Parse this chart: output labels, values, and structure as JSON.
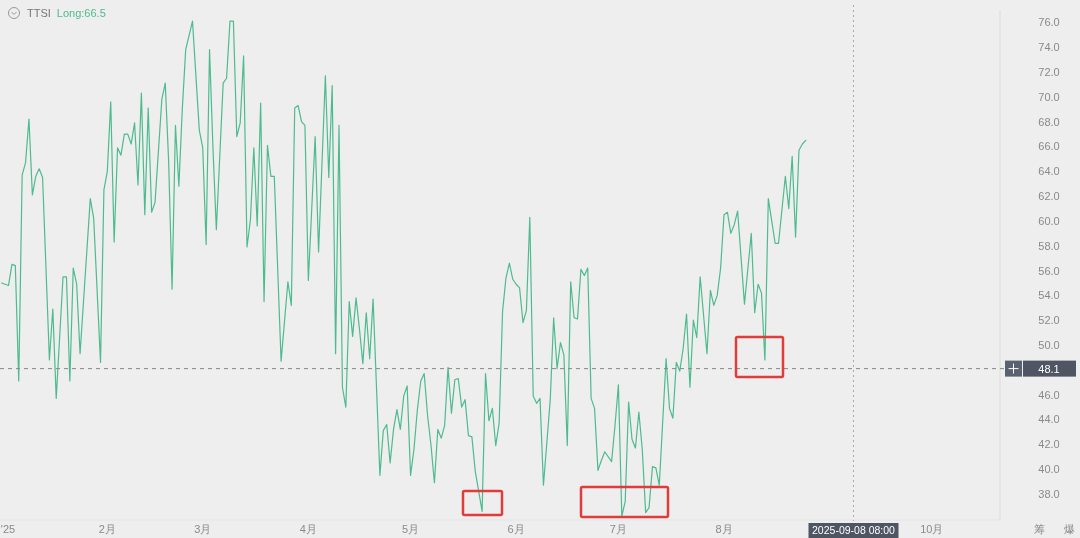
{
  "chart_data": {
    "type": "line",
    "title": "TTSI",
    "xlim": [
      "2024-12-31T12:00",
      "2025-10-21"
    ],
    "ylim": [
      35.9,
      77.0
    ],
    "xticks": [
      {
        "value": "2025-01-01",
        "label": "'25"
      },
      {
        "value": "2025-02-01",
        "label": "2月"
      },
      {
        "value": "2025-03-01",
        "label": "3月"
      },
      {
        "value": "2025-04-01",
        "label": "4月"
      },
      {
        "value": "2025-05-01",
        "label": "5月"
      },
      {
        "value": "2025-06-01",
        "label": "6月"
      },
      {
        "value": "2025-07-01",
        "label": "7月"
      },
      {
        "value": "2025-08-01",
        "label": "8月"
      },
      {
        "value": "2025-10-01",
        "label": "10月"
      }
    ],
    "yticks": [
      {
        "value": 38,
        "label": "38.0"
      },
      {
        "value": 40,
        "label": "40.0"
      },
      {
        "value": 42,
        "label": "42.0"
      },
      {
        "value": 44,
        "label": "44.0"
      },
      {
        "value": 46,
        "label": "46.0"
      },
      {
        "value": 50,
        "label": "50.0"
      },
      {
        "value": 52,
        "label": "52.0"
      },
      {
        "value": 54,
        "label": "54.0"
      },
      {
        "value": 56,
        "label": "56.0"
      },
      {
        "value": 58,
        "label": "58.0"
      },
      {
        "value": 60,
        "label": "60.0"
      },
      {
        "value": 62,
        "label": "62.0"
      },
      {
        "value": 64,
        "label": "64.0"
      },
      {
        "value": 66,
        "label": "66.0"
      },
      {
        "value": 68,
        "label": "68.0"
      },
      {
        "value": 70,
        "label": "70.0"
      },
      {
        "value": 72,
        "label": "72.0"
      },
      {
        "value": 74,
        "label": "74.0"
      },
      {
        "value": 76,
        "label": "76.0"
      }
    ],
    "ref_lines": [
      {
        "axis": "y",
        "value": 48.1,
        "label": "48.1",
        "color": "#888888",
        "line_style": "dashed"
      },
      {
        "axis": "x",
        "value": "2025-09-08",
        "label": "2025-09-08 08:00",
        "color": "#aaaaaa",
        "line_style": "dotted"
      }
    ],
    "annotations": [
      "筹",
      "爆"
    ],
    "series": [
      {
        "name": "Long:66.5",
        "color": "#4dbb8f",
        "x": [
          "2025-01-01",
          "2025-01-03",
          "2025-01-04",
          "2025-01-05",
          "2025-01-06",
          "2025-01-07",
          "2025-01-08",
          "2025-01-09",
          "2025-01-10",
          "2025-01-11",
          "2025-01-12",
          "2025-01-13",
          "2025-01-15",
          "2025-01-16",
          "2025-01-17",
          "2025-01-19",
          "2025-01-20",
          "2025-01-21",
          "2025-01-22",
          "2025-01-23",
          "2025-01-24",
          "2025-01-27",
          "2025-01-28",
          "2025-01-30",
          "2025-01-31",
          "2025-02-01",
          "2025-02-02",
          "2025-02-03",
          "2025-02-04",
          "2025-02-05",
          "2025-02-06",
          "2025-02-07",
          "2025-02-08",
          "2025-02-09",
          "2025-02-10",
          "2025-02-11",
          "2025-02-12",
          "2025-02-13",
          "2025-02-14",
          "2025-02-15",
          "2025-02-17",
          "2025-02-18",
          "2025-02-19",
          "2025-02-20",
          "2025-02-21",
          "2025-02-22",
          "2025-02-23",
          "2025-02-24",
          "2025-02-26",
          "2025-02-28",
          "2025-03-01",
          "2025-03-02",
          "2025-03-03",
          "2025-03-04",
          "2025-03-05",
          "2025-03-07",
          "2025-03-08",
          "2025-03-09",
          "2025-03-10",
          "2025-03-11",
          "2025-03-12",
          "2025-03-13",
          "2025-03-14",
          "2025-03-15",
          "2025-03-16",
          "2025-03-17",
          "2025-03-18",
          "2025-03-19",
          "2025-03-20",
          "2025-03-21",
          "2025-03-22",
          "2025-03-24",
          "2025-03-26",
          "2025-03-27",
          "2025-03-28",
          "2025-03-29",
          "2025-03-30",
          "2025-03-31",
          "2025-04-01",
          "2025-04-03",
          "2025-04-04",
          "2025-04-06",
          "2025-04-07",
          "2025-04-08",
          "2025-04-09",
          "2025-04-10",
          "2025-04-11",
          "2025-04-12",
          "2025-04-13",
          "2025-04-14",
          "2025-04-15",
          "2025-04-16",
          "2025-04-17",
          "2025-04-18",
          "2025-04-19",
          "2025-04-20",
          "2025-04-22",
          "2025-04-23",
          "2025-04-24",
          "2025-04-25",
          "2025-04-26",
          "2025-04-27",
          "2025-04-28",
          "2025-04-29",
          "2025-04-30",
          "2025-05-01",
          "2025-05-02",
          "2025-05-03",
          "2025-05-04",
          "2025-05-05",
          "2025-05-06",
          "2025-05-07",
          "2025-05-08",
          "2025-05-09",
          "2025-05-10",
          "2025-05-11",
          "2025-05-12",
          "2025-05-13",
          "2025-05-14",
          "2025-05-15",
          "2025-05-16",
          "2025-05-17",
          "2025-05-18",
          "2025-05-19",
          "2025-05-20",
          "2025-05-22",
          "2025-05-23",
          "2025-05-24",
          "2025-05-25",
          "2025-05-26",
          "2025-05-27",
          "2025-05-28",
          "2025-05-29",
          "2025-05-30",
          "2025-05-31",
          "2025-06-01",
          "2025-06-02",
          "2025-06-03",
          "2025-06-04",
          "2025-06-05",
          "2025-06-06",
          "2025-06-07",
          "2025-06-08",
          "2025-06-09",
          "2025-06-11",
          "2025-06-12",
          "2025-06-13",
          "2025-06-14",
          "2025-06-15",
          "2025-06-16",
          "2025-06-17",
          "2025-06-18",
          "2025-06-19",
          "2025-06-20",
          "2025-06-21",
          "2025-06-22",
          "2025-06-23",
          "2025-06-24",
          "2025-06-25",
          "2025-06-26",
          "2025-06-27",
          "2025-06-29",
          "2025-06-30",
          "2025-07-01",
          "2025-07-02",
          "2025-07-03",
          "2025-07-04",
          "2025-07-05",
          "2025-07-06",
          "2025-07-07",
          "2025-07-08",
          "2025-07-09",
          "2025-07-10",
          "2025-07-11",
          "2025-07-12",
          "2025-07-13",
          "2025-07-15",
          "2025-07-16",
          "2025-07-17",
          "2025-07-18",
          "2025-07-19",
          "2025-07-20",
          "2025-07-21",
          "2025-07-22",
          "2025-07-23",
          "2025-07-24",
          "2025-07-25",
          "2025-07-27",
          "2025-07-28",
          "2025-07-29",
          "2025-07-30",
          "2025-07-31",
          "2025-08-01",
          "2025-08-02",
          "2025-08-03",
          "2025-08-04",
          "2025-08-05",
          "2025-08-07",
          "2025-08-09",
          "2025-08-10",
          "2025-08-11",
          "2025-08-12",
          "2025-08-13",
          "2025-08-14",
          "2025-08-16",
          "2025-08-17",
          "2025-08-19",
          "2025-08-20",
          "2025-08-21",
          "2025-08-22",
          "2025-08-23",
          "2025-08-24",
          "2025-08-25"
        ],
        "values": [
          55.0,
          54.8,
          56.5,
          56.4,
          47.1,
          63.7,
          64.7,
          68.2,
          62.1,
          63.6,
          64.2,
          63.5,
          48.8,
          52.9,
          45.7,
          55.5,
          55.5,
          47.1,
          56.2,
          54.9,
          49.3,
          61.8,
          60.2,
          48.6,
          62.5,
          64.0,
          69.6,
          58.3,
          65.9,
          65.3,
          67.0,
          67.0,
          66.2,
          67.9,
          62.9,
          70.3,
          60.5,
          69.1,
          60.7,
          61.5,
          69.8,
          71.1,
          64.8,
          54.5,
          67.7,
          62.8,
          69.0,
          73.8,
          76.1,
          67.3,
          65.9,
          58.1,
          73.8,
          65.9,
          59.3,
          71.1,
          71.5,
          76.1,
          76.1,
          66.8,
          67.9,
          73.3,
          57.9,
          60.1,
          65.9,
          59.6,
          69.5,
          53.5,
          66.1,
          63.6,
          63.6,
          48.7,
          55.1,
          53.2,
          69.1,
          69.3,
          68.0,
          67.7,
          55.2,
          66.8,
          57.5,
          71.7,
          63.5,
          70.9,
          49.3,
          67.7,
          46.6,
          45.0,
          53.5,
          50.7,
          53.8,
          51.3,
          48.5,
          52.6,
          48.9,
          53.7,
          39.5,
          43.1,
          43.6,
          40.5,
          43.2,
          44.8,
          43.2,
          45.9,
          46.7,
          39.5,
          41.6,
          44.8,
          47.1,
          47.7,
          44.3,
          41.9,
          38.9,
          43.2,
          42.5,
          43.5,
          48.2,
          44.5,
          47.2,
          47.3,
          45.0,
          45.6,
          42.7,
          42.6,
          39.8,
          36.6,
          47.7,
          43.9,
          44.9,
          41.9,
          43.7,
          52.7,
          55.4,
          56.6,
          55.3,
          54.9,
          54.6,
          51.8,
          52.8,
          60.3,
          45.9,
          45.3,
          45.7,
          38.7,
          45.6,
          52.2,
          48.1,
          50.2,
          49.2,
          41.9,
          55.1,
          52.2,
          52.1,
          56.1,
          55.6,
          56.2,
          45.7,
          44.9,
          39.9,
          40.7,
          41.4,
          40.6,
          43.5,
          46.8,
          36.2,
          37.4,
          45.4,
          42.4,
          41.7,
          44.6,
          41.6,
          36.5,
          36.9,
          40.2,
          40.1,
          38.7,
          48.9,
          44.9,
          44.1,
          48.6,
          47.9,
          49.7,
          52.5,
          46.6,
          52.0,
          50.6,
          55.5,
          49.3,
          54.4,
          53.2,
          54.0,
          56.2,
          60.5,
          60.7,
          59.0,
          59.7,
          60.8,
          53.3,
          59.0,
          52.6,
          54.9,
          54.2,
          48.8,
          61.8,
          58.2,
          58.2,
          63.6,
          61.0,
          65.2,
          58.7,
          65.7,
          66.2,
          66.5
        ]
      }
    ]
  }
}
